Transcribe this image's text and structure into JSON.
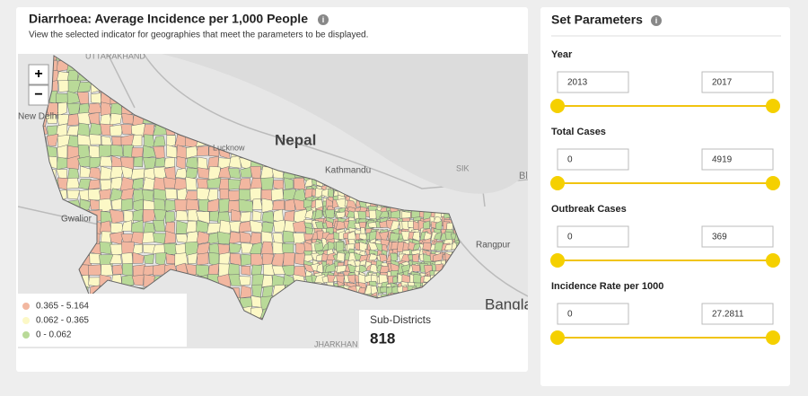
{
  "map_panel": {
    "title": "Diarrhoea: Average Incidence per 1,000 People",
    "subtitle": "View the selected indicator for geographies that meet the parameters to be displayed.",
    "zoom_in": "+",
    "zoom_out": "−",
    "place_labels": [
      "UTTARAKHAND",
      "New Delhi",
      "Nepal",
      "Kathmandu",
      "Gwalior",
      "Rangpur",
      "Bangla",
      "JHARKHAN",
      "SIK",
      "Bl",
      "Lucknow"
    ],
    "legend": [
      "0.365 - 5.164",
      "0.062 - 0.365",
      "0 - 0.062"
    ],
    "count_label": "Sub-Districts",
    "count_value": 818
  },
  "parameters": {
    "title": "Set Parameters",
    "groups": [
      {
        "label": "Year",
        "min": 2013,
        "max": 2017
      },
      {
        "label": "Total Cases",
        "min": 0,
        "max": 4919
      },
      {
        "label": "Outbreak Cases",
        "min": 0,
        "max": 369
      },
      {
        "label": "Incidence Rate per 1000",
        "min": 0,
        "max": 27.2811
      }
    ]
  }
}
